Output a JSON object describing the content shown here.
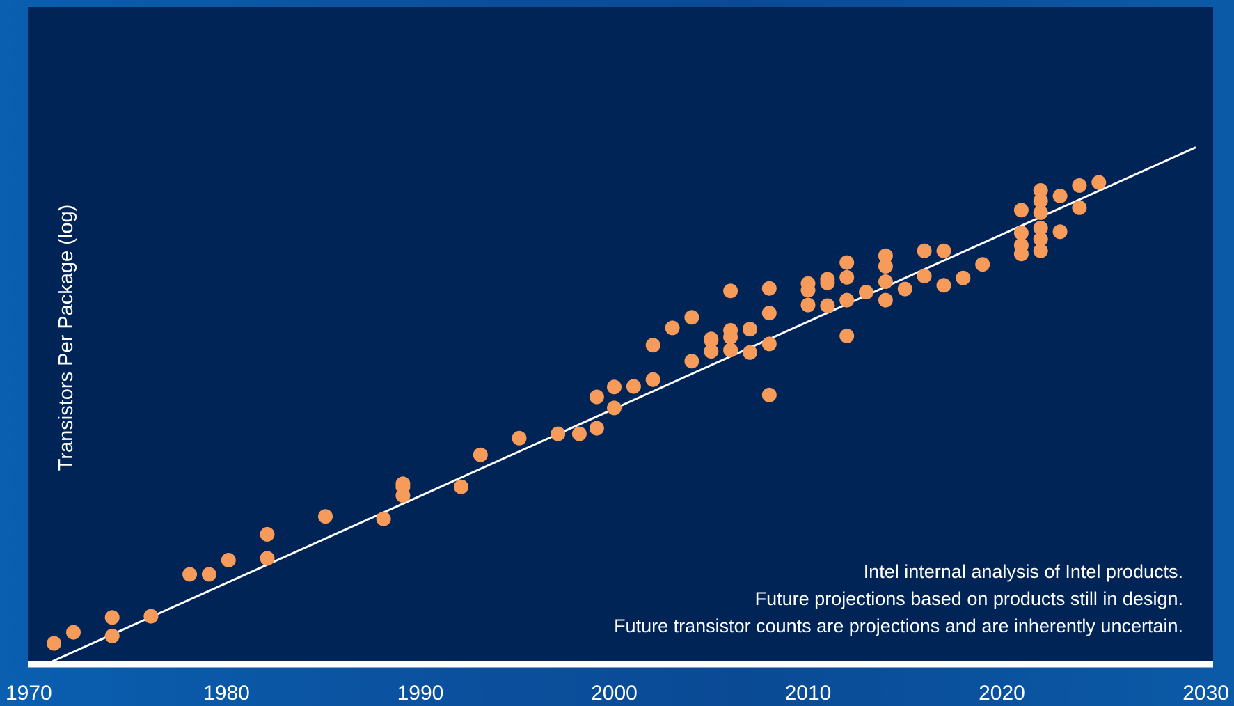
{
  "chart_data": {
    "type": "scatter",
    "title": "",
    "xlabel": "",
    "ylabel": "Transistors Per Package (log)",
    "y_scale": "log",
    "xlim": [
      1970,
      2030
    ],
    "x_ticks": [
      "1970",
      "1980",
      "1990",
      "2000",
      "2010",
      "2020",
      "2030"
    ],
    "legend": "none",
    "grid": false,
    "colors": {
      "points": "#f79b5b",
      "trend": "#ffffff",
      "plot_background": "#012456",
      "frame": "#0b5aa8"
    },
    "trend_line": {
      "x": [
        1971,
        2030
      ],
      "y": [
        0.0,
        8.05
      ]
    },
    "series": [
      {
        "points": [
          {
            "x": 1971.1,
            "y": 0.0
          },
          {
            "x": 1972.1,
            "y": 0.18
          },
          {
            "x": 1974.1,
            "y": 0.42
          },
          {
            "x": 1974.1,
            "y": 0.12
          },
          {
            "x": 1976.1,
            "y": 0.44
          },
          {
            "x": 1978.1,
            "y": 1.12
          },
          {
            "x": 1979.1,
            "y": 1.12
          },
          {
            "x": 1980.1,
            "y": 1.35
          },
          {
            "x": 1982.1,
            "y": 1.38
          },
          {
            "x": 1982.1,
            "y": 1.77
          },
          {
            "x": 1985.1,
            "y": 2.06
          },
          {
            "x": 1988.1,
            "y": 2.02
          },
          {
            "x": 1989.1,
            "y": 2.4
          },
          {
            "x": 1989.1,
            "y": 2.54
          },
          {
            "x": 1989.1,
            "y": 2.59
          },
          {
            "x": 1992.1,
            "y": 2.54
          },
          {
            "x": 1993.1,
            "y": 3.06
          },
          {
            "x": 1995.1,
            "y": 3.33
          },
          {
            "x": 1997.1,
            "y": 3.4
          },
          {
            "x": 1998.2,
            "y": 3.4
          },
          {
            "x": 1999.1,
            "y": 3.49
          },
          {
            "x": 1999.1,
            "y": 4.0
          },
          {
            "x": 2000.0,
            "y": 3.82
          },
          {
            "x": 2000.0,
            "y": 4.16
          },
          {
            "x": 2001.0,
            "y": 4.17
          },
          {
            "x": 2002.0,
            "y": 4.28
          },
          {
            "x": 2002.0,
            "y": 4.84
          },
          {
            "x": 2003.0,
            "y": 5.12
          },
          {
            "x": 2004.0,
            "y": 4.58
          },
          {
            "x": 2004.0,
            "y": 5.29
          },
          {
            "x": 2005.0,
            "y": 4.74
          },
          {
            "x": 2005.0,
            "y": 4.92
          },
          {
            "x": 2005.0,
            "y": 4.94
          },
          {
            "x": 2006.0,
            "y": 4.76
          },
          {
            "x": 2006.0,
            "y": 4.97
          },
          {
            "x": 2006.0,
            "y": 5.08
          },
          {
            "x": 2006.0,
            "y": 5.72
          },
          {
            "x": 2007.0,
            "y": 4.72
          },
          {
            "x": 2007.0,
            "y": 5.1
          },
          {
            "x": 2008.0,
            "y": 4.03
          },
          {
            "x": 2008.0,
            "y": 4.86
          },
          {
            "x": 2008.0,
            "y": 5.36
          },
          {
            "x": 2008.0,
            "y": 5.76
          },
          {
            "x": 2010.0,
            "y": 5.73
          },
          {
            "x": 2010.0,
            "y": 5.49
          },
          {
            "x": 2010.0,
            "y": 5.84
          },
          {
            "x": 2011.0,
            "y": 5.48
          },
          {
            "x": 2011.0,
            "y": 5.85
          },
          {
            "x": 2011.0,
            "y": 5.91
          },
          {
            "x": 2012.0,
            "y": 5.57
          },
          {
            "x": 2012.0,
            "y": 5.94
          },
          {
            "x": 2012.0,
            "y": 6.18
          },
          {
            "x": 2012.0,
            "y": 4.99
          },
          {
            "x": 2013.0,
            "y": 5.7
          },
          {
            "x": 2014.0,
            "y": 5.57
          },
          {
            "x": 2014.0,
            "y": 5.87
          },
          {
            "x": 2014.0,
            "y": 6.12
          },
          {
            "x": 2014.0,
            "y": 6.29
          },
          {
            "x": 2015.0,
            "y": 5.75
          },
          {
            "x": 2016.0,
            "y": 6.37
          },
          {
            "x": 2016.0,
            "y": 5.96
          },
          {
            "x": 2017.0,
            "y": 6.37
          },
          {
            "x": 2017.0,
            "y": 5.81
          },
          {
            "x": 2018.0,
            "y": 5.93
          },
          {
            "x": 2019.0,
            "y": 6.15
          },
          {
            "x": 2021.0,
            "y": 7.03
          },
          {
            "x": 2021.0,
            "y": 6.66
          },
          {
            "x": 2021.0,
            "y": 6.46
          },
          {
            "x": 2021.0,
            "y": 6.32
          },
          {
            "x": 2022.0,
            "y": 7.35
          },
          {
            "x": 2022.0,
            "y": 7.18
          },
          {
            "x": 2022.0,
            "y": 6.99
          },
          {
            "x": 2022.0,
            "y": 6.74
          },
          {
            "x": 2022.0,
            "y": 6.56
          },
          {
            "x": 2022.0,
            "y": 6.37
          },
          {
            "x": 2023.0,
            "y": 7.26
          },
          {
            "x": 2023.0,
            "y": 6.68
          },
          {
            "x": 2024.0,
            "y": 7.43
          },
          {
            "x": 2024.0,
            "y": 7.07
          },
          {
            "x": 2025.0,
            "y": 7.48
          }
        ]
      }
    ],
    "annotations": [
      "Intel internal analysis of Intel products.",
      "Future projections based on products still in design.",
      "Future transistor counts are projections and are inherently uncertain."
    ]
  }
}
